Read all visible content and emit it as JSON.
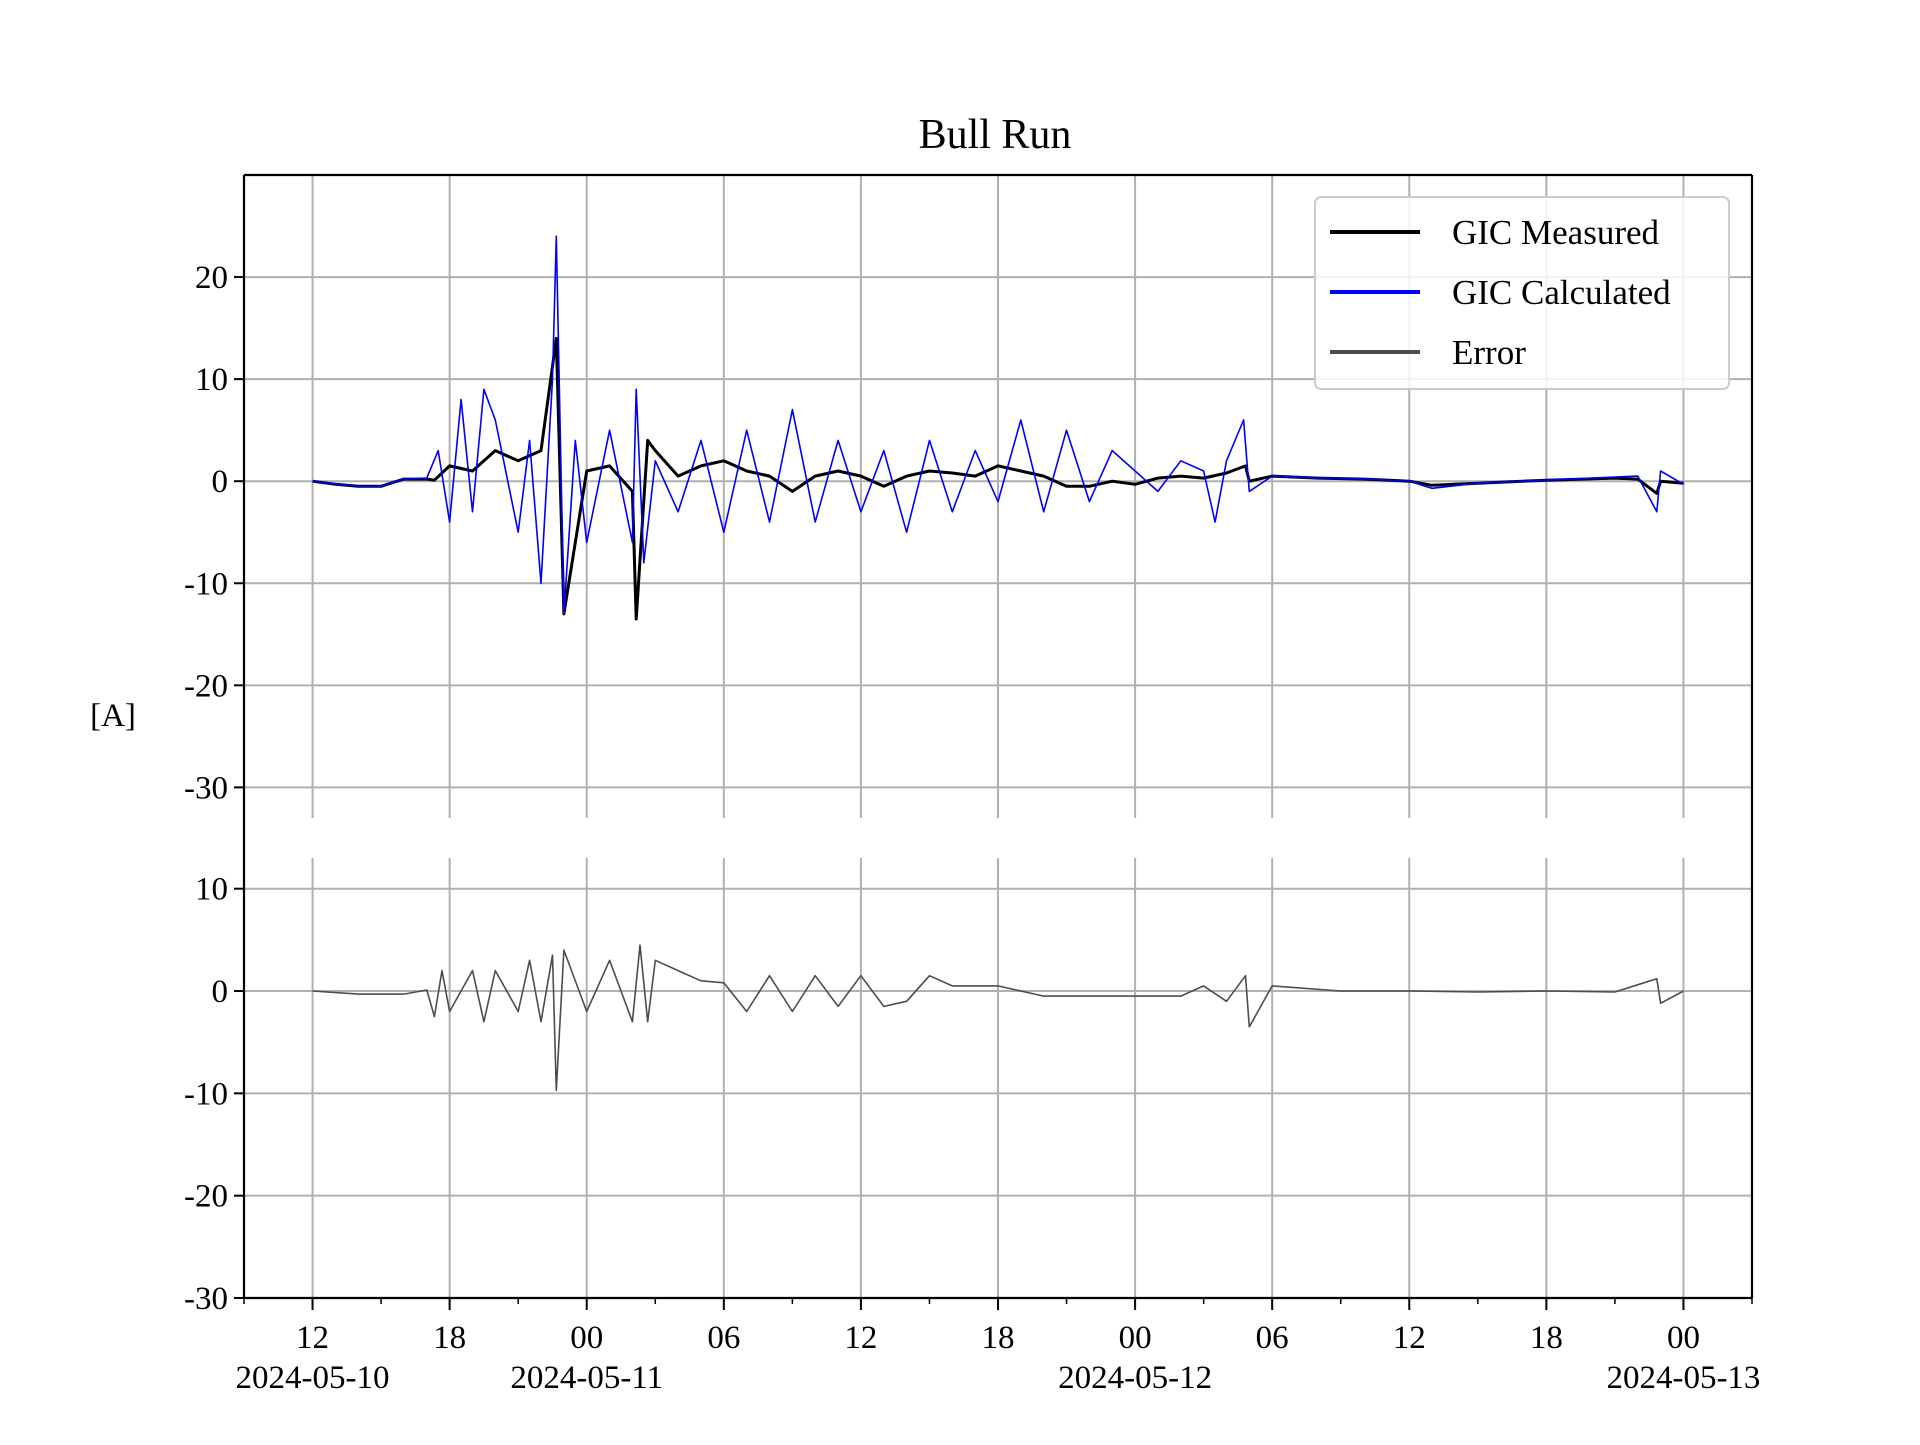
{
  "chart_data": {
    "type": "line",
    "title": "Bull Run",
    "ylabel": "[A]",
    "xlabel": "",
    "grid": true,
    "legend": {
      "placement": "top-right",
      "entries": [
        {
          "label": "GIC Measured",
          "color": "#000000"
        },
        {
          "label": "GIC Calculated",
          "color": "#0000ff"
        },
        {
          "label": "Error",
          "color": "#4d4d4d"
        }
      ]
    },
    "x_ticks": [
      {
        "major": "12",
        "date": "2024-05-10"
      },
      {
        "major": "18",
        "date": ""
      },
      {
        "major": "00",
        "date": "2024-05-11"
      },
      {
        "major": "06",
        "date": ""
      },
      {
        "major": "12",
        "date": ""
      },
      {
        "major": "18",
        "date": ""
      },
      {
        "major": "00",
        "date": "2024-05-12"
      },
      {
        "major": "06",
        "date": ""
      },
      {
        "major": "12",
        "date": ""
      },
      {
        "major": "18",
        "date": ""
      },
      {
        "major": "00",
        "date": "2024-05-13"
      }
    ],
    "xlim": [
      "2024-05-10 09:00",
      "2024-05-13 03:00"
    ],
    "panels": [
      {
        "name": "gic",
        "ylim": [
          -33,
          30
        ],
        "yticks": [
          "20",
          "10",
          "0",
          "-10",
          "-20",
          "-30"
        ],
        "ytick_values": [
          20,
          10,
          0,
          -10,
          -20,
          -30
        ],
        "series": [
          {
            "name": "GIC Measured",
            "color": "#000000",
            "x": [
              "2024-05-10 12:00",
              "2024-05-10 13:00",
              "2024-05-10 14:00",
              "2024-05-10 15:00",
              "2024-05-10 16:00",
              "2024-05-10 17:00",
              "2024-05-10 17:20",
              "2024-05-10 18:00",
              "2024-05-10 19:00",
              "2024-05-10 20:00",
              "2024-05-10 21:00",
              "2024-05-10 22:00",
              "2024-05-10 22:40",
              "2024-05-10 23:00",
              "2024-05-11 00:00",
              "2024-05-11 01:00",
              "2024-05-11 02:00",
              "2024-05-11 02:10",
              "2024-05-11 02:40",
              "2024-05-11 03:00",
              "2024-05-11 04:00",
              "2024-05-11 05:00",
              "2024-05-11 06:00",
              "2024-05-11 07:00",
              "2024-05-11 08:00",
              "2024-05-11 09:00",
              "2024-05-11 10:00",
              "2024-05-11 11:00",
              "2024-05-11 12:00",
              "2024-05-11 13:00",
              "2024-05-11 14:00",
              "2024-05-11 15:00",
              "2024-05-11 16:00",
              "2024-05-11 17:00",
              "2024-05-11 18:00",
              "2024-05-11 19:00",
              "2024-05-11 20:00",
              "2024-05-11 21:00",
              "2024-05-11 22:00",
              "2024-05-11 23:00",
              "2024-05-12 00:00",
              "2024-05-12 01:00",
              "2024-05-12 02:00",
              "2024-05-12 03:00",
              "2024-05-12 04:00",
              "2024-05-12 04:50",
              "2024-05-12 05:00",
              "2024-05-12 06:00",
              "2024-05-12 08:00",
              "2024-05-12 10:00",
              "2024-05-12 12:00",
              "2024-05-12 13:00",
              "2024-05-12 15:00",
              "2024-05-12 18:00",
              "2024-05-12 21:00",
              "2024-05-12 22:00",
              "2024-05-12 22:50",
              "2024-05-12 23:00",
              "2024-05-13 00:00"
            ],
            "y": [
              0,
              -0.3,
              -0.5,
              -0.5,
              0.2,
              0.2,
              0.1,
              1.5,
              1,
              3,
              2,
              3,
              14,
              -13,
              1,
              1.5,
              -1,
              -13.5,
              4,
              3,
              0.5,
              1.5,
              2,
              1,
              0.5,
              -1,
              0.5,
              1,
              0.5,
              -0.5,
              0.5,
              1,
              0.8,
              0.5,
              1.5,
              1,
              0.5,
              -0.5,
              -0.5,
              0,
              -0.3,
              0.3,
              0.5,
              0.3,
              0.8,
              1.5,
              0,
              0.5,
              0.3,
              0.2,
              0,
              -0.4,
              -0.2,
              0.1,
              0.3,
              0.2,
              -1.2,
              0,
              -0.2
            ]
          },
          {
            "name": "GIC Calculated",
            "color": "#0000ff",
            "x": [
              "2024-05-10 12:00",
              "2024-05-10 13:00",
              "2024-05-10 14:00",
              "2024-05-10 15:00",
              "2024-05-10 16:00",
              "2024-05-10 17:00",
              "2024-05-10 17:30",
              "2024-05-10 18:00",
              "2024-05-10 18:30",
              "2024-05-10 19:00",
              "2024-05-10 19:30",
              "2024-05-10 20:00",
              "2024-05-10 21:00",
              "2024-05-10 21:30",
              "2024-05-10 22:00",
              "2024-05-10 22:30",
              "2024-05-10 22:40",
              "2024-05-10 23:00",
              "2024-05-10 23:30",
              "2024-05-11 00:00",
              "2024-05-11 01:00",
              "2024-05-11 02:00",
              "2024-05-11 02:10",
              "2024-05-11 02:30",
              "2024-05-11 03:00",
              "2024-05-11 04:00",
              "2024-05-11 05:00",
              "2024-05-11 06:00",
              "2024-05-11 07:00",
              "2024-05-11 08:00",
              "2024-05-11 09:00",
              "2024-05-11 10:00",
              "2024-05-11 11:00",
              "2024-05-11 12:00",
              "2024-05-11 13:00",
              "2024-05-11 14:00",
              "2024-05-11 15:00",
              "2024-05-11 16:00",
              "2024-05-11 17:00",
              "2024-05-11 18:00",
              "2024-05-11 19:00",
              "2024-05-11 20:00",
              "2024-05-11 21:00",
              "2024-05-11 22:00",
              "2024-05-11 23:00",
              "2024-05-12 00:00",
              "2024-05-12 01:00",
              "2024-05-12 02:00",
              "2024-05-12 03:00",
              "2024-05-12 03:30",
              "2024-05-12 04:00",
              "2024-05-12 04:45",
              "2024-05-12 05:00",
              "2024-05-12 06:00",
              "2024-05-12 08:00",
              "2024-05-12 10:00",
              "2024-05-12 12:00",
              "2024-05-12 13:00",
              "2024-05-12 15:00",
              "2024-05-12 18:00",
              "2024-05-12 21:00",
              "2024-05-12 22:00",
              "2024-05-12 22:50",
              "2024-05-12 23:00",
              "2024-05-13 00:00"
            ],
            "y": [
              0,
              -0.3,
              -0.5,
              -0.5,
              0.2,
              0.3,
              3,
              -4,
              8,
              -3,
              9,
              6,
              -5,
              4,
              -10,
              10,
              24,
              -13,
              4,
              -6,
              5,
              -6,
              9,
              -8,
              2,
              -3,
              4,
              -5,
              5,
              -4,
              7,
              -4,
              4,
              -3,
              3,
              -5,
              4,
              -3,
              3,
              -2,
              6,
              -3,
              5,
              -2,
              3,
              1,
              -1,
              2,
              1,
              -4,
              2,
              6,
              -1,
              0.5,
              0.3,
              0.2,
              0,
              -0.7,
              -0.2,
              0.1,
              0.4,
              0.5,
              -3,
              1,
              -0.3
            ]
          }
        ]
      },
      {
        "name": "error",
        "ylim": [
          -30,
          13
        ],
        "yticks": [
          "10",
          "0",
          "-10",
          "-20",
          "-30"
        ],
        "ytick_values": [
          10,
          0,
          -10,
          -20,
          -30
        ],
        "series": [
          {
            "name": "Error",
            "color": "#4d4d4d",
            "x": [
              "2024-05-10 12:00",
              "2024-05-10 14:00",
              "2024-05-10 16:00",
              "2024-05-10 17:00",
              "2024-05-10 17:20",
              "2024-05-10 17:40",
              "2024-05-10 18:00",
              "2024-05-10 19:00",
              "2024-05-10 19:30",
              "2024-05-10 20:00",
              "2024-05-10 21:00",
              "2024-05-10 21:30",
              "2024-05-10 22:00",
              "2024-05-10 22:30",
              "2024-05-10 22:40",
              "2024-05-10 23:00",
              "2024-05-11 00:00",
              "2024-05-11 01:00",
              "2024-05-11 02:00",
              "2024-05-11 02:20",
              "2024-05-11 02:40",
              "2024-05-11 03:00",
              "2024-05-11 04:00",
              "2024-05-11 05:00",
              "2024-05-11 06:00",
              "2024-05-11 07:00",
              "2024-05-11 08:00",
              "2024-05-11 09:00",
              "2024-05-11 10:00",
              "2024-05-11 11:00",
              "2024-05-11 12:00",
              "2024-05-11 13:00",
              "2024-05-11 14:00",
              "2024-05-11 15:00",
              "2024-05-11 16:00",
              "2024-05-11 18:00",
              "2024-05-11 20:00",
              "2024-05-11 22:00",
              "2024-05-12 00:00",
              "2024-05-12 02:00",
              "2024-05-12 03:00",
              "2024-05-12 04:00",
              "2024-05-12 04:50",
              "2024-05-12 05:00",
              "2024-05-12 06:00",
              "2024-05-12 09:00",
              "2024-05-12 12:00",
              "2024-05-12 15:00",
              "2024-05-12 18:00",
              "2024-05-12 21:00",
              "2024-05-12 22:50",
              "2024-05-12 23:00",
              "2024-05-13 00:00"
            ],
            "y": [
              0,
              -0.3,
              -0.3,
              0.1,
              -2.5,
              2,
              -2,
              2,
              -3,
              2,
              -2,
              3,
              -3,
              3.5,
              -9.7,
              4,
              -2,
              3,
              -3,
              4.5,
              -3,
              3,
              2,
              1,
              0.8,
              -2,
              1.5,
              -2,
              1.5,
              -1.5,
              1.5,
              -1.5,
              -1,
              1.5,
              0.5,
              0.5,
              -0.5,
              -0.5,
              -0.5,
              -0.5,
              0.5,
              -1,
              1.5,
              -3.5,
              0.5,
              0,
              0,
              -0.1,
              0,
              -0.1,
              1.2,
              -1.2,
              0
            ]
          }
        ]
      }
    ]
  }
}
